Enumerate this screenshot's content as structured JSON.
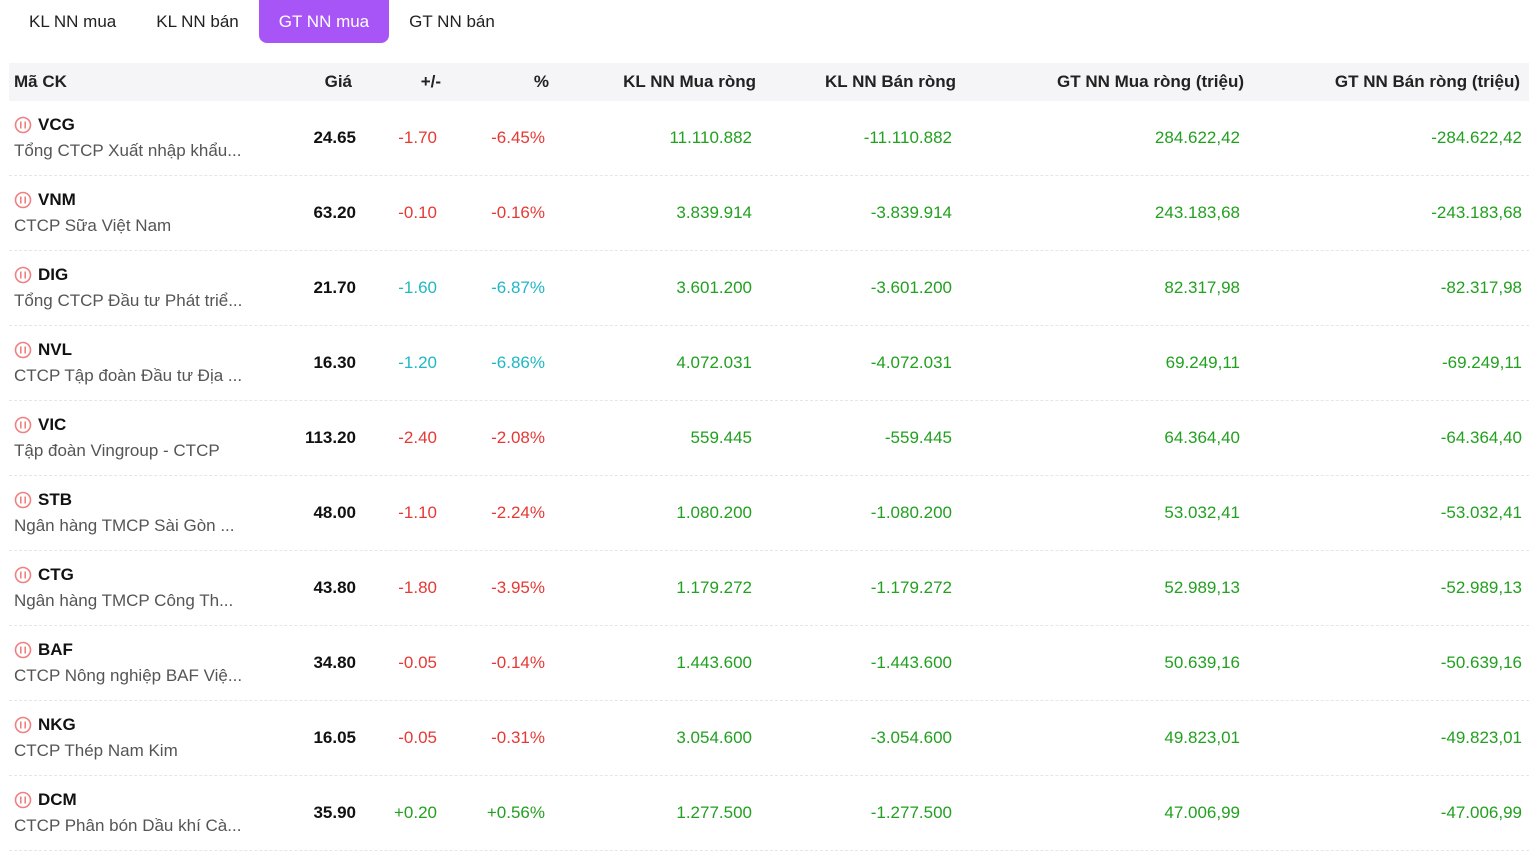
{
  "tabs": [
    {
      "label": "KL NN mua",
      "active": false
    },
    {
      "label": "KL NN bán",
      "active": false
    },
    {
      "label": "GT NN mua",
      "active": true
    },
    {
      "label": "GT NN bán",
      "active": false
    }
  ],
  "columns": {
    "code": "Mã CK",
    "price": "Giá",
    "change": "+/-",
    "percent": "%",
    "kl_buy": "KL NN Mua ròng",
    "kl_sell": "KL NN Bán ròng",
    "gt_buy": "GT NN Mua ròng (triệu)",
    "gt_sell": "GT NN Bán ròng (triệu)"
  },
  "colors": {
    "accent": "#a855f7",
    "down": "#e53935",
    "floor": "#1fb8c4",
    "up": "#22a020"
  },
  "rows": [
    {
      "symbol": "VCG",
      "name": "Tổng CTCP Xuất nhập khẩu...",
      "price": "24.65",
      "change": "-1.70",
      "percent": "-6.45%",
      "kl_buy": "11.110.882",
      "kl_sell": "-11.110.882",
      "gt_buy": "284.622,42",
      "gt_sell": "-284.622,42",
      "trend": "red"
    },
    {
      "symbol": "VNM",
      "name": "CTCP Sữa Việt Nam",
      "price": "63.20",
      "change": "-0.10",
      "percent": "-0.16%",
      "kl_buy": "3.839.914",
      "kl_sell": "-3.839.914",
      "gt_buy": "243.183,68",
      "gt_sell": "-243.183,68",
      "trend": "red"
    },
    {
      "symbol": "DIG",
      "name": "Tổng CTCP Đầu tư Phát triể...",
      "price": "21.70",
      "change": "-1.60",
      "percent": "-6.87%",
      "kl_buy": "3.601.200",
      "kl_sell": "-3.601.200",
      "gt_buy": "82.317,98",
      "gt_sell": "-82.317,98",
      "trend": "teal"
    },
    {
      "symbol": "NVL",
      "name": "CTCP Tập đoàn Đầu tư Địa ...",
      "price": "16.30",
      "change": "-1.20",
      "percent": "-6.86%",
      "kl_buy": "4.072.031",
      "kl_sell": "-4.072.031",
      "gt_buy": "69.249,11",
      "gt_sell": "-69.249,11",
      "trend": "teal"
    },
    {
      "symbol": "VIC",
      "name": "Tập đoàn Vingroup - CTCP",
      "price": "113.20",
      "change": "-2.40",
      "percent": "-2.08%",
      "kl_buy": "559.445",
      "kl_sell": "-559.445",
      "gt_buy": "64.364,40",
      "gt_sell": "-64.364,40",
      "trend": "red"
    },
    {
      "symbol": "STB",
      "name": "Ngân hàng TMCP Sài Gòn ...",
      "price": "48.00",
      "change": "-1.10",
      "percent": "-2.24%",
      "kl_buy": "1.080.200",
      "kl_sell": "-1.080.200",
      "gt_buy": "53.032,41",
      "gt_sell": "-53.032,41",
      "trend": "red"
    },
    {
      "symbol": "CTG",
      "name": "Ngân hàng TMCP Công Th...",
      "price": "43.80",
      "change": "-1.80",
      "percent": "-3.95%",
      "kl_buy": "1.179.272",
      "kl_sell": "-1.179.272",
      "gt_buy": "52.989,13",
      "gt_sell": "-52.989,13",
      "trend": "red"
    },
    {
      "symbol": "BAF",
      "name": "CTCP Nông nghiệp BAF Việ...",
      "price": "34.80",
      "change": "-0.05",
      "percent": "-0.14%",
      "kl_buy": "1.443.600",
      "kl_sell": "-1.443.600",
      "gt_buy": "50.639,16",
      "gt_sell": "-50.639,16",
      "trend": "red"
    },
    {
      "symbol": "NKG",
      "name": "CTCP Thép Nam Kim",
      "price": "16.05",
      "change": "-0.05",
      "percent": "-0.31%",
      "kl_buy": "3.054.600",
      "kl_sell": "-3.054.600",
      "gt_buy": "49.823,01",
      "gt_sell": "-49.823,01",
      "trend": "red"
    },
    {
      "symbol": "DCM",
      "name": "CTCP Phân bón Dầu khí Cà...",
      "price": "35.90",
      "change": "+0.20",
      "percent": "+0.56%",
      "kl_buy": "1.277.500",
      "kl_sell": "-1.277.500",
      "gt_buy": "47.006,99",
      "gt_sell": "-47.006,99",
      "trend": "green"
    }
  ]
}
